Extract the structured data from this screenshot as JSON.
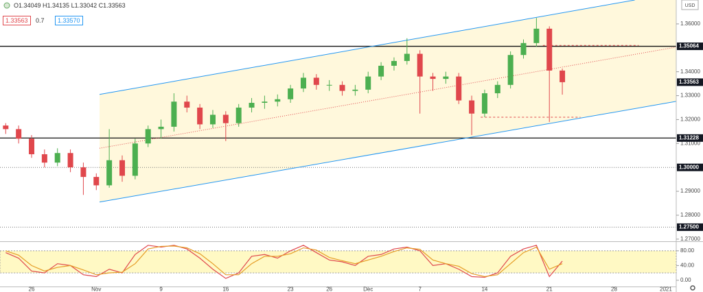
{
  "header": {
    "ohlc": "O1.34049 H1.34135 L1.33042 C1.33563",
    "bid": "1.33563",
    "spread": "0.7",
    "ask": "1.33570",
    "currency": "USD"
  },
  "chart_data": [
    {
      "type": "candlestick",
      "xlim": [
        -2.44,
        49.8
      ],
      "ylim": [
        1.2691,
        1.37
      ],
      "up_color": "#4caf50",
      "down_color": "#e0474c",
      "x": [
        -2,
        -1,
        0,
        1,
        2,
        3,
        4,
        5,
        6,
        7,
        8,
        9,
        10,
        11,
        12,
        13,
        14,
        15,
        16,
        17,
        18,
        19,
        20,
        21,
        22,
        23,
        24,
        25,
        26,
        27,
        28,
        29,
        30,
        31,
        32,
        33,
        34,
        35,
        36,
        37,
        38,
        39,
        40,
        41
      ],
      "open": [
        1.3175,
        1.316,
        1.312,
        1.3055,
        1.302,
        1.306,
        1.3,
        1.296,
        1.2925,
        1.303,
        1.2965,
        1.31,
        1.316,
        1.317,
        1.3275,
        1.325,
        1.318,
        1.322,
        1.3185,
        1.325,
        1.327,
        1.3275,
        1.3285,
        1.333,
        1.3375,
        1.3345,
        1.3345,
        1.332,
        1.3325,
        1.338,
        1.3425,
        1.3445,
        1.3475,
        1.338,
        1.337,
        1.338,
        1.328,
        1.3225,
        1.331,
        1.3345,
        1.347,
        1.352,
        1.358,
        1.34049
      ],
      "high": [
        1.3185,
        1.3175,
        1.3135,
        1.3075,
        1.308,
        1.3075,
        1.302,
        1.2975,
        1.316,
        1.305,
        1.312,
        1.3175,
        1.32,
        1.331,
        1.33,
        1.3265,
        1.324,
        1.3235,
        1.3265,
        1.329,
        1.33,
        1.3305,
        1.3345,
        1.3395,
        1.339,
        1.3365,
        1.336,
        1.3345,
        1.34,
        1.344,
        1.346,
        1.354,
        1.349,
        1.3395,
        1.34,
        1.3395,
        1.33,
        1.3325,
        1.336,
        1.3485,
        1.3535,
        1.3625,
        1.359,
        1.34135
      ],
      "low": [
        1.314,
        1.31,
        1.304,
        1.3,
        1.3005,
        1.298,
        1.2885,
        1.2905,
        1.2915,
        1.294,
        1.295,
        1.3085,
        1.312,
        1.315,
        1.323,
        1.316,
        1.3165,
        1.311,
        1.317,
        1.323,
        1.3245,
        1.3255,
        1.327,
        1.3315,
        1.3325,
        1.332,
        1.33,
        1.33,
        1.331,
        1.3365,
        1.3405,
        1.343,
        1.3225,
        1.332,
        1.335,
        1.3265,
        1.3135,
        1.321,
        1.329,
        1.333,
        1.3455,
        1.3505,
        1.319,
        1.33042
      ],
      "close": [
        1.316,
        1.312,
        1.3055,
        1.302,
        1.306,
        1.3,
        1.296,
        1.2925,
        1.303,
        1.2965,
        1.31,
        1.316,
        1.317,
        1.3275,
        1.325,
        1.318,
        1.322,
        1.3185,
        1.325,
        1.327,
        1.3275,
        1.3285,
        1.333,
        1.3375,
        1.3345,
        1.3345,
        1.332,
        1.3325,
        1.338,
        1.3425,
        1.3445,
        1.3475,
        1.338,
        1.337,
        1.338,
        1.328,
        1.3225,
        1.331,
        1.3345,
        1.347,
        1.352,
        1.358,
        1.34049,
        1.33563
      ],
      "yticks": [
        {
          "value": 1.36,
          "label": "1.36000"
        },
        {
          "value": 1.34,
          "label": "1.34000"
        },
        {
          "value": 1.33,
          "label": "1.33000"
        },
        {
          "value": 1.32,
          "label": "1.32000"
        },
        {
          "value": 1.31,
          "label": "1.31000"
        },
        {
          "value": 1.29,
          "label": "1.29000"
        },
        {
          "value": 1.28,
          "label": "1.28000"
        },
        {
          "value": 1.27,
          "label": "1.27000"
        }
      ],
      "price_tags": [
        {
          "value": 1.35064,
          "label": "1.35064",
          "line": "solid"
        },
        {
          "value": 1.33563,
          "label": "1.33563"
        },
        {
          "value": 1.31228,
          "label": "1.31228",
          "line": "solid"
        },
        {
          "value": 1.3,
          "label": "1.30000",
          "line": "dotted"
        },
        {
          "value": 1.275,
          "label": "1.27500",
          "line": "dotted"
        }
      ],
      "channel_color": "#2196f3",
      "channel_fill": "#fff8dc",
      "mid_color": "#e0474c",
      "channel": {
        "upper": {
          "x": [
            5.25,
            46.6
          ],
          "y": [
            1.3305,
            1.37
          ]
        },
        "lower": {
          "x": [
            5.25,
            49.8
          ],
          "y": [
            1.2855,
            1.3276
          ]
        },
        "mid": {
          "x": [
            5.25,
            49.8
          ],
          "y": [
            1.308,
            1.3503
          ]
        }
      },
      "levels": [
        {
          "x": [
            39.5,
            46.9
          ],
          "y": 1.351
        },
        {
          "x": [
            34.7,
            42.4
          ],
          "y": 1.321
        }
      ]
    },
    {
      "type": "line",
      "ylim": [
        -17,
        104
      ],
      "band": [
        20,
        80
      ],
      "band_color": "#fff9c4",
      "yticks": [
        {
          "value": 80,
          "label": "80.00"
        },
        {
          "value": 40,
          "label": "40.00"
        },
        {
          "value": 0,
          "label": "0.00"
        }
      ],
      "x": [
        -2,
        -1,
        0,
        1,
        2,
        3,
        4,
        5,
        6,
        7,
        8,
        9,
        10,
        11,
        12,
        13,
        14,
        15,
        16,
        17,
        18,
        19,
        20,
        21,
        22,
        23,
        24,
        25,
        26,
        27,
        28,
        29,
        30,
        31,
        32,
        33,
        34,
        35,
        36,
        37,
        38,
        39,
        40,
        41
      ],
      "series": [
        {
          "color": "#e0474c",
          "values": [
            75,
            60,
            25,
            20,
            45,
            40,
            15,
            10,
            30,
            20,
            70,
            95,
            90,
            95,
            85,
            60,
            30,
            5,
            20,
            65,
            70,
            60,
            80,
            95,
            75,
            55,
            50,
            40,
            65,
            70,
            85,
            90,
            80,
            40,
            45,
            30,
            10,
            8,
            20,
            65,
            85,
            95,
            10,
            52
          ]
        },
        {
          "color": "#e59c25",
          "values": [
            80,
            68,
            40,
            25,
            35,
            40,
            28,
            15,
            20,
            22,
            45,
            85,
            92,
            93,
            88,
            72,
            45,
            15,
            15,
            45,
            65,
            65,
            72,
            88,
            82,
            62,
            53,
            45,
            55,
            65,
            78,
            88,
            84,
            55,
            45,
            38,
            18,
            10,
            15,
            45,
            75,
            90,
            30,
            45
          ]
        }
      ],
      "xticks": [
        {
          "value": 0,
          "label": "26"
        },
        {
          "value": 5,
          "label": "Nov"
        },
        {
          "value": 10,
          "label": "9"
        },
        {
          "value": 15,
          "label": "16"
        },
        {
          "value": 20,
          "label": "23"
        },
        {
          "value": 23,
          "label": "26"
        },
        {
          "value": 26,
          "label": "Dec"
        },
        {
          "value": 30,
          "label": "7"
        },
        {
          "value": 35,
          "label": "14"
        },
        {
          "value": 40,
          "label": "21"
        },
        {
          "value": 45,
          "label": "28"
        },
        {
          "value": 49,
          "label": "2021"
        }
      ]
    }
  ]
}
